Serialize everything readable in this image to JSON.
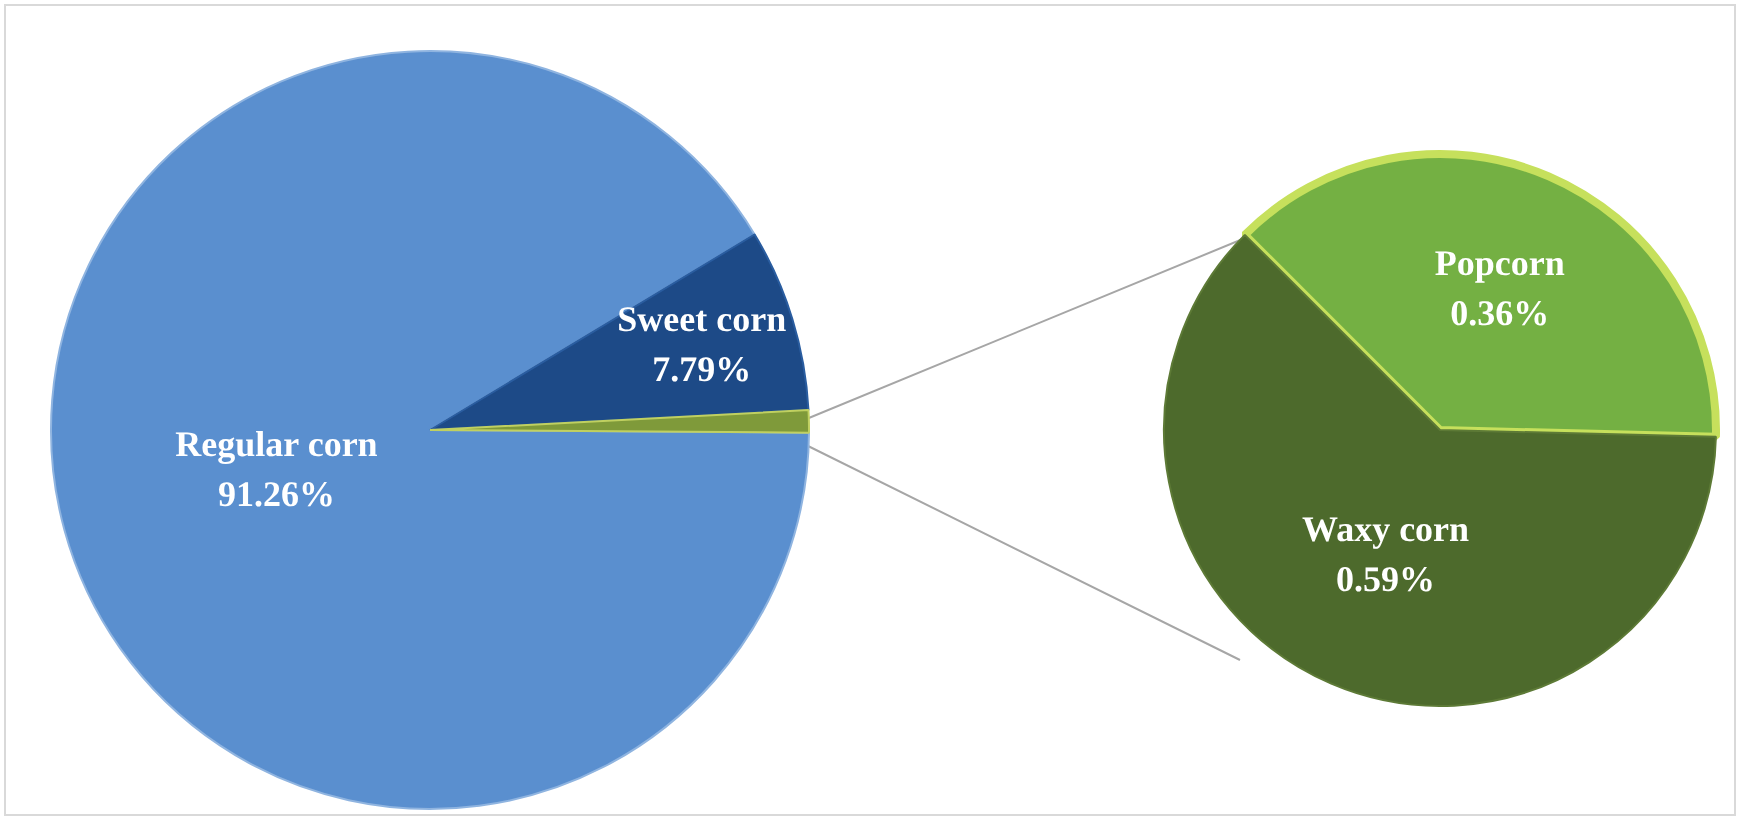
{
  "chart_data": [
    {
      "type": "pie",
      "categories": [
        "Regular corn",
        "Sweet corn",
        null
      ],
      "values": [
        91.26,
        7.79,
        0.95
      ],
      "colors": [
        "#5a8fcf",
        "#1d4a87",
        "#7f9a3a"
      ],
      "value_labels": [
        "91.26%",
        "7.79%",
        null
      ]
    },
    {
      "type": "pie",
      "categories": [
        "Popcorn",
        "Waxy corn"
      ],
      "values": [
        0.36,
        0.59
      ],
      "colors": [
        "#74b043",
        "#4d6a2c"
      ],
      "value_labels": [
        "0.36%",
        "0.59%"
      ]
    }
  ]
}
